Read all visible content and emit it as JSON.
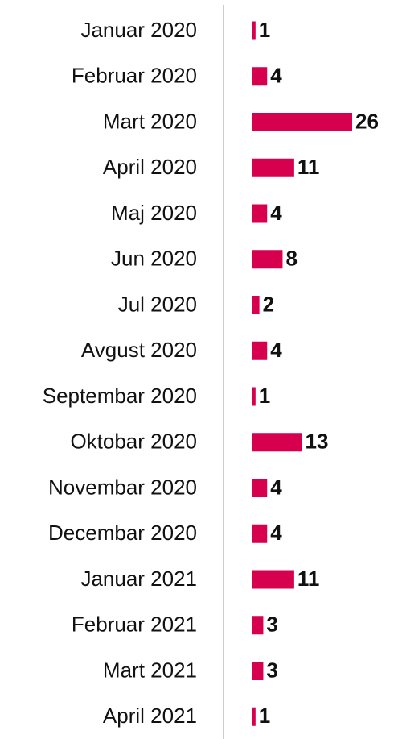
{
  "chart_data": {
    "type": "bar",
    "orientation": "horizontal",
    "categories": [
      "Januar 2020",
      "Februar 2020",
      "Mart 2020",
      "April 2020",
      "Maj 2020",
      "Jun 2020",
      "Jul 2020",
      "Avgust 2020",
      "Septembar 2020",
      "Oktobar 2020",
      "Novembar 2020",
      "Decembar 2020",
      "Januar 2021",
      "Februar 2021",
      "Mart 2021",
      "April 2021"
    ],
    "values": [
      1,
      4,
      26,
      11,
      4,
      8,
      2,
      4,
      1,
      13,
      4,
      4,
      11,
      3,
      3,
      1
    ],
    "color": "#d6004f"
  }
}
